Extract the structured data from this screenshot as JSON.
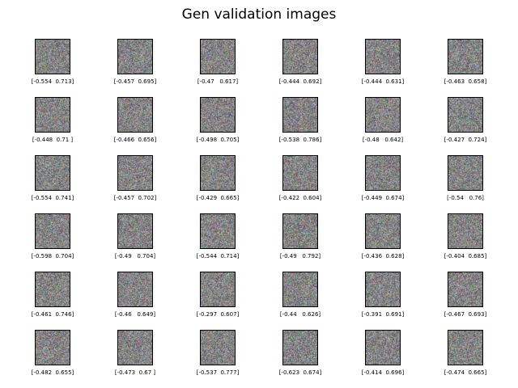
{
  "title": "Gen validation images",
  "images": [
    {
      "caption": "[-0.554  0.713]"
    },
    {
      "caption": "[-0.457  0.695]"
    },
    {
      "caption": "[-0.47   0.617]"
    },
    {
      "caption": "[-0.444  0.692]"
    },
    {
      "caption": "[-0.444  0.631]"
    },
    {
      "caption": "[-0.463  0.658]"
    },
    {
      "caption": "[-0.448  0.71 ]"
    },
    {
      "caption": "[-0.466  0.656]"
    },
    {
      "caption": "[-0.498  0.705]"
    },
    {
      "caption": "[-0.538  0.786]"
    },
    {
      "caption": "[-0.48   0.642]"
    },
    {
      "caption": "[-0.427  0.724]"
    },
    {
      "caption": "[-0.554  0.741]"
    },
    {
      "caption": "[-0.457  0.702]"
    },
    {
      "caption": "[-0.429  0.665]"
    },
    {
      "caption": "[-0.422  0.604]"
    },
    {
      "caption": "[-0.449  0.674]"
    },
    {
      "caption": "[-0.54   0.76]"
    },
    {
      "caption": "[-0.598  0.704]"
    },
    {
      "caption": "[-0.49   0.704]"
    },
    {
      "caption": "[-0.544  0.714]"
    },
    {
      "caption": "[-0.49   0.792]"
    },
    {
      "caption": "[-0.436  0.628]"
    },
    {
      "caption": "[-0.404  0.685]"
    },
    {
      "caption": "[-0.461  0.746]"
    },
    {
      "caption": "[-0.46   0.649]"
    },
    {
      "caption": "[-0.297  0.607]"
    },
    {
      "caption": "[-0.44   0.626]"
    },
    {
      "caption": "[-0.391  0.691]"
    },
    {
      "caption": "[-0.467  0.693]"
    },
    {
      "caption": "[-0.482  0.655]"
    },
    {
      "caption": "[-0.473  0.67 ]"
    },
    {
      "caption": "[-0.537  0.777]"
    },
    {
      "caption": "[-0.623  0.674]"
    },
    {
      "caption": "[-0.414  0.696]"
    },
    {
      "caption": "[-0.474  0.665]"
    }
  ]
}
